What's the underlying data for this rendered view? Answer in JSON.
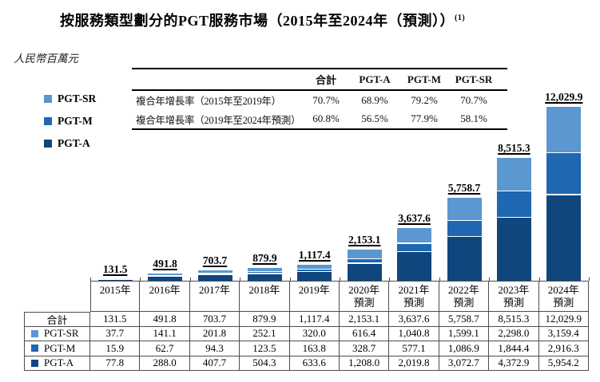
{
  "title": {
    "text": "按服務類型劃分的PGT服務市場（2015年至2024年（預測））",
    "footnote": "(1)"
  },
  "unit_label": "人民幣百萬元",
  "colors": {
    "pgt_sr": "#5b97d0",
    "pgt_m": "#1f67b1",
    "pgt_a": "#10467e",
    "table_border": "#4d4d4d"
  },
  "legend": [
    {
      "id": "pgt-sr",
      "label": "PGT-SR",
      "color": "#5b97d0"
    },
    {
      "id": "pgt-m",
      "label": "PGT-M",
      "color": "#1f67b1"
    },
    {
      "id": "pgt-a",
      "label": "PGT-A",
      "color": "#10467e"
    }
  ],
  "cagr_table": {
    "col_headers": [
      "合計",
      "PGT-A",
      "PGT-M",
      "PGT-SR"
    ],
    "rows": [
      {
        "label": "複合年增長率（2015年至2019年）",
        "values": [
          "70.7%",
          "68.9%",
          "79.2%",
          "70.7%"
        ]
      },
      {
        "label": "複合年增長率（2019年至2024年預測）",
        "values": [
          "60.8%",
          "56.5%",
          "77.9%",
          "58.1%"
        ]
      }
    ]
  },
  "chart_data": {
    "type": "bar",
    "stacked": true,
    "title": "按服務類型劃分的PGT服務市場（2015年至2024年（預測））",
    "ylabel": "人民幣百萬元",
    "grid": false,
    "legend_position": "left",
    "ymax": 12029.9,
    "categories": [
      "2015年",
      "2016年",
      "2017年",
      "2018年",
      "2019年",
      "2020年預測",
      "2021年預測",
      "2022年預測",
      "2023年預測",
      "2024年預測"
    ],
    "series": [
      {
        "name": "PGT-A",
        "color": "#10467e",
        "values": [
          77.8,
          288.0,
          407.7,
          504.3,
          633.6,
          1208.0,
          2019.8,
          3072.7,
          4372.9,
          5954.2
        ]
      },
      {
        "name": "PGT-M",
        "color": "#1f67b1",
        "values": [
          15.9,
          62.7,
          94.3,
          123.5,
          163.8,
          328.7,
          577.1,
          1086.9,
          1844.4,
          2916.3
        ]
      },
      {
        "name": "PGT-SR",
        "color": "#5b97d0",
        "values": [
          37.7,
          141.1,
          201.8,
          252.1,
          320.0,
          616.4,
          1040.8,
          1599.1,
          2298.0,
          3159.4
        ]
      }
    ],
    "totals": [
      131.5,
      491.8,
      703.7,
      879.9,
      1117.4,
      2153.1,
      3637.6,
      5758.7,
      8515.3,
      12029.9
    ],
    "total_labels": [
      "131.5",
      "491.8",
      "703.7",
      "879.9",
      "1,117.4",
      "2,153.1",
      "3,637.6",
      "5,758.7",
      "8,515.3",
      "12,029.9"
    ]
  },
  "bottom_table": {
    "year_headers": [
      {
        "line1": "2015年",
        "line2": ""
      },
      {
        "line1": "2016年",
        "line2": ""
      },
      {
        "line1": "2017年",
        "line2": ""
      },
      {
        "line1": "2018年",
        "line2": ""
      },
      {
        "line1": "2019年",
        "line2": ""
      },
      {
        "line1": "2020年",
        "line2": "預測"
      },
      {
        "line1": "2021年",
        "line2": "預測"
      },
      {
        "line1": "2022年",
        "line2": "預測"
      },
      {
        "line1": "2023年",
        "line2": "預測"
      },
      {
        "line1": "2024年",
        "line2": "預測"
      }
    ],
    "rows": [
      {
        "label": "合計",
        "swatch": null,
        "values": [
          "131.5",
          "491.8",
          "703.7",
          "879.9",
          "1,117.4",
          "2,153.1",
          "3,637.6",
          "5,758.7",
          "8,515.3",
          "12,029.9"
        ]
      },
      {
        "label": "PGT-SR",
        "swatch": "#5b97d0",
        "values": [
          "37.7",
          "141.1",
          "201.8",
          "252.1",
          "320.0",
          "616.4",
          "1,040.8",
          "1,599.1",
          "2,298.0",
          "3,159.4"
        ]
      },
      {
        "label": "PGT-M",
        "swatch": "#1f67b1",
        "values": [
          "15.9",
          "62.7",
          "94.3",
          "123.5",
          "163.8",
          "328.7",
          "577.1",
          "1,086.9",
          "1,844.4",
          "2,916.3"
        ]
      },
      {
        "label": "PGT-A",
        "swatch": "#10467e",
        "values": [
          "77.8",
          "288.0",
          "407.7",
          "504.3",
          "633.6",
          "1,208.0",
          "2,019.8",
          "3,072.7",
          "4,372.9",
          "5,954.2"
        ]
      }
    ]
  }
}
